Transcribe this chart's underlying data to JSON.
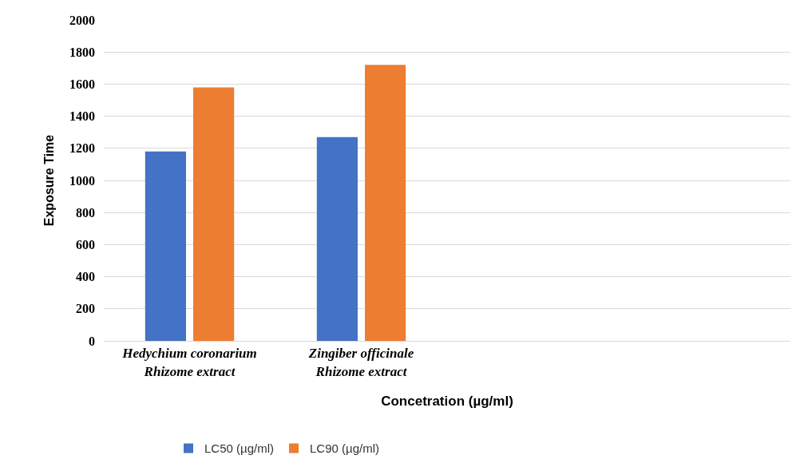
{
  "chart_data": {
    "type": "bar",
    "xlabel": "Concetration (µg/ml)",
    "ylabel": "Exposure Time",
    "categories": [
      "Hedychium coronarium\nRhizome extract",
      "Zingiber officinale\nRhizome extract",
      null,
      null
    ],
    "series": [
      {
        "name": "LC50 (µg/ml)",
        "color": "#4472c4",
        "values": [
          1180,
          1270,
          null,
          null
        ]
      },
      {
        "name": "LC90 (µg/ml)",
        "color": "#ed7d31",
        "values": [
          1580,
          1720,
          null,
          null
        ]
      }
    ],
    "ylim": [
      0,
      2000
    ],
    "yticks": [
      0,
      200,
      400,
      600,
      800,
      1000,
      1200,
      1400,
      1600,
      1800,
      2000
    ],
    "grid": "y",
    "legend": "bottom"
  }
}
